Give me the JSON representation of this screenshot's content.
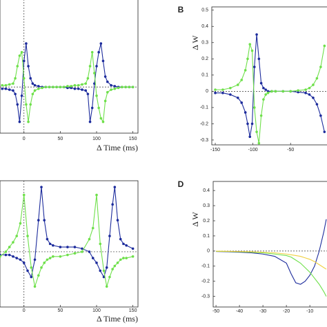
{
  "chart_data": [
    {
      "type": "line",
      "xlabel": "Δ Time (ms)",
      "markers": true,
      "reference_lines": {
        "x": 0,
        "y": 0
      },
      "xlim": [
        -33,
        157
      ],
      "ylim": [
        -0.265,
        0.52
      ],
      "xticks": [
        0,
        50,
        100,
        150
      ],
      "x": [
        -30,
        -25,
        -20,
        -15,
        -12,
        -9,
        -6,
        -3,
        0,
        3,
        6,
        9,
        12,
        15,
        20,
        25,
        30,
        35,
        40,
        45,
        50,
        55,
        60,
        65,
        70,
        75,
        80,
        85,
        88,
        91,
        94,
        97,
        100,
        103,
        106,
        109,
        112,
        115,
        120,
        125,
        130,
        135,
        140,
        145,
        150
      ],
      "series": [
        {
          "color": "#1c2b9c",
          "values": [
            -0.01,
            -0.01,
            -0.015,
            -0.02,
            -0.04,
            -0.1,
            -0.2,
            -0.05,
            0.15,
            0.25,
            0.12,
            0.05,
            0.02,
            0.01,
            0.005,
            0,
            0,
            0,
            0,
            0,
            0,
            0,
            -0.005,
            -0.005,
            -0.01,
            -0.01,
            -0.015,
            -0.02,
            -0.04,
            -0.2,
            -0.12,
            0.02,
            0.12,
            0.2,
            0.25,
            0.15,
            0.06,
            0.03,
            0.01,
            0.005,
            0,
            0,
            0,
            0,
            0
          ]
        },
        {
          "color": "#6ee04a",
          "values": [
            0.01,
            0.01,
            0.015,
            0.02,
            0.05,
            0.12,
            0.18,
            0.2,
            0.05,
            -0.1,
            -0.2,
            -0.1,
            -0.04,
            -0.02,
            -0.01,
            -0.005,
            0,
            0,
            0,
            0,
            0,
            0,
            0.005,
            0.005,
            0.01,
            0.01,
            0.015,
            0.02,
            0.05,
            0.12,
            0.2,
            0.08,
            -0.05,
            -0.12,
            -0.18,
            -0.2,
            -0.08,
            -0.03,
            -0.015,
            -0.01,
            -0.005,
            0,
            0,
            0,
            0
          ]
        }
      ]
    },
    {
      "type": "line",
      "panel": "B",
      "ylabel": "Δ W",
      "markers": true,
      "reference_lines": {
        "y": 0
      },
      "xlim": [
        -154.6,
        0.2
      ],
      "ylim": [
        -0.33,
        0.52
      ],
      "xticks": [
        -150,
        -100,
        -50
      ],
      "yticks": [
        0.5,
        0.4,
        0.3,
        0.2,
        0.1,
        0,
        -0.1,
        -0.2,
        -0.3
      ],
      "x": [
        -150,
        -140,
        -130,
        -120,
        -115,
        -110,
        -107,
        -104,
        -101,
        -98,
        -95,
        -92,
        -89,
        -86,
        -83,
        -80,
        -75,
        -70,
        -60,
        -50,
        -40,
        -30,
        -25,
        -20,
        -15,
        -10,
        -5
      ],
      "series": [
        {
          "color": "#1c2b9c",
          "values": [
            -0.01,
            -0.01,
            -0.02,
            -0.04,
            -0.07,
            -0.13,
            -0.2,
            -0.28,
            -0.2,
            0.15,
            0.35,
            0.2,
            0.05,
            0.02,
            0.01,
            0,
            0,
            0,
            0,
            0,
            -0.005,
            -0.01,
            -0.02,
            -0.04,
            -0.08,
            -0.15,
            -0.25
          ]
        },
        {
          "color": "#6ee04a",
          "values": [
            0.01,
            0.01,
            0.02,
            0.04,
            0.07,
            0.13,
            0.2,
            0.29,
            0.25,
            -0.1,
            -0.25,
            -0.32,
            -0.15,
            -0.05,
            -0.02,
            -0.01,
            0,
            0,
            0,
            0,
            0.005,
            0.01,
            0.02,
            0.04,
            0.08,
            0.15,
            0.28
          ]
        }
      ]
    },
    {
      "type": "line",
      "xlabel": "Δ Time (ms)",
      "markers": true,
      "reference_lines": {
        "x": 0,
        "y": 0
      },
      "xlim": [
        -33,
        157
      ],
      "ylim": [
        -0.35,
        0.45
      ],
      "xticks": [
        0,
        50,
        100,
        150
      ],
      "x": [
        -33,
        -25,
        -20,
        -15,
        -10,
        -5,
        0,
        5,
        10,
        15,
        20,
        24,
        28,
        32,
        36,
        40,
        50,
        60,
        70,
        80,
        90,
        95,
        100,
        105,
        110,
        114,
        118,
        122,
        125,
        129,
        133,
        137,
        141,
        150
      ],
      "series": [
        {
          "color": "#1c2b9c",
          "values": [
            -0.02,
            -0.02,
            -0.02,
            -0.03,
            -0.04,
            -0.05,
            -0.07,
            -0.12,
            -0.16,
            -0.05,
            0.2,
            0.41,
            0.2,
            0.08,
            0.05,
            0.04,
            0.03,
            0.03,
            0.03,
            0.02,
            0,
            -0.04,
            -0.07,
            -0.12,
            -0.16,
            -0.1,
            0.1,
            0.3,
            0.41,
            0.2,
            0.08,
            0.05,
            0.04,
            0.02
          ]
        },
        {
          "color": "#6ee04a",
          "values": [
            -0.03,
            0,
            0.03,
            0.06,
            0.1,
            0.18,
            0.36,
            0.1,
            -0.1,
            -0.22,
            -0.15,
            -0.1,
            -0.07,
            -0.05,
            -0.04,
            -0.03,
            -0.03,
            -0.02,
            -0.01,
            0,
            0.08,
            0.15,
            0.36,
            0.05,
            -0.12,
            -0.22,
            -0.16,
            -0.11,
            -0.09,
            -0.07,
            -0.05,
            -0.04,
            -0.04,
            -0.03
          ]
        }
      ]
    },
    {
      "type": "line",
      "panel": "D",
      "ylabel": "Δ W",
      "markers": false,
      "reference_lines": {
        "y": 0
      },
      "xlim": [
        -51.2,
        -2.1
      ],
      "ylim": [
        -0.37,
        0.46
      ],
      "xticks": [
        -50,
        -40,
        -30,
        -20,
        -10
      ],
      "yticks": [
        0.4,
        0.3,
        0.2,
        0.1,
        0,
        -0.1,
        -0.2,
        -0.3
      ],
      "x": [
        -50,
        -45,
        -40,
        -35,
        -30,
        -25,
        -20,
        -18,
        -16,
        -14,
        -12,
        -10,
        -8,
        -6,
        -4,
        -3
      ],
      "series": [
        {
          "color": "#1c2b9c",
          "values": [
            -0.003,
            -0.005,
            -0.008,
            -0.012,
            -0.02,
            -0.035,
            -0.08,
            -0.15,
            -0.21,
            -0.22,
            -0.2,
            -0.16,
            -0.1,
            0,
            0.13,
            0.21
          ]
        },
        {
          "color": "#6ee04a",
          "values": [
            -0.002,
            -0.003,
            -0.005,
            -0.008,
            -0.012,
            -0.02,
            -0.03,
            -0.04,
            -0.06,
            -0.08,
            -0.11,
            -0.14,
            -0.18,
            -0.22,
            -0.27,
            -0.3
          ]
        },
        {
          "color": "#f0d040",
          "values": [
            -0.001,
            -0.002,
            -0.003,
            -0.005,
            -0.008,
            -0.012,
            -0.02,
            -0.025,
            -0.03,
            -0.035,
            -0.045,
            -0.055,
            -0.07,
            -0.09,
            -0.11,
            -0.12
          ]
        }
      ]
    }
  ]
}
